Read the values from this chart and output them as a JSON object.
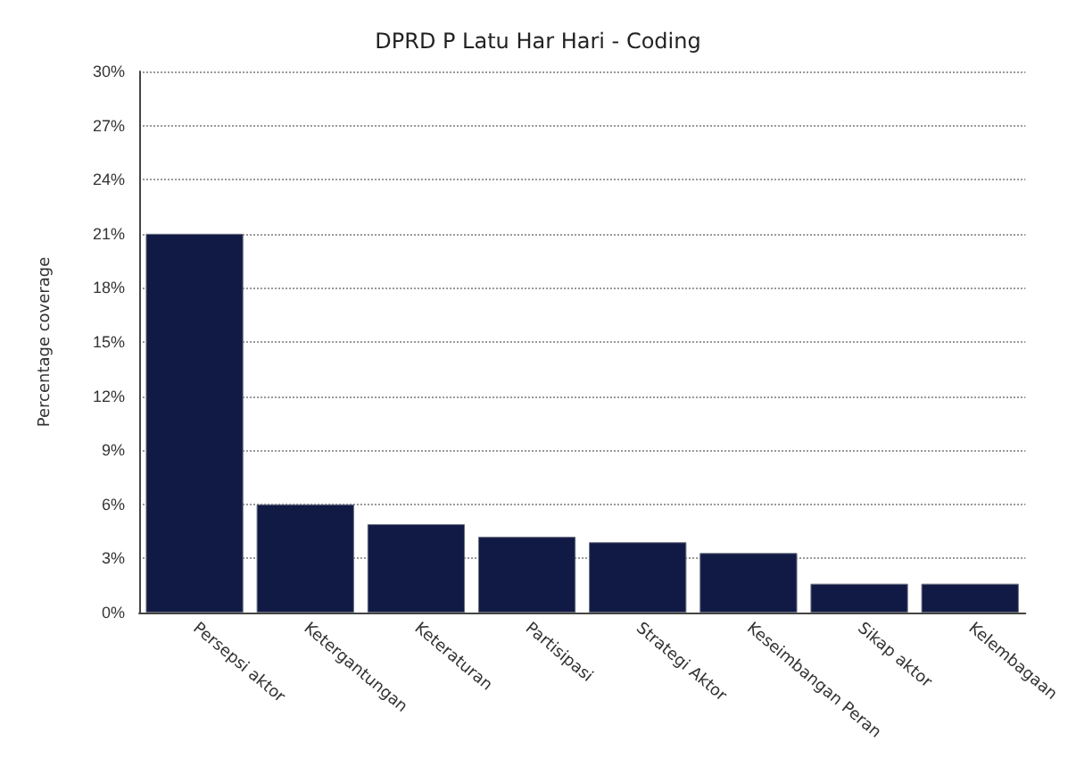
{
  "chart_data": {
    "type": "bar",
    "title": "DPRD P Latu Har Hari - Coding",
    "ylabel": "Percentage coverage",
    "categories": [
      "Persepsi aktor",
      "Ketergantungan",
      "Keteraturan",
      "Partisipasi",
      "Strategi Aktor",
      "Keseimbangan Peran",
      "Sikap aktor",
      "Kelembagaan"
    ],
    "values": [
      21,
      6,
      4.9,
      4.2,
      3.9,
      3.3,
      1.6,
      1.6
    ],
    "color": "#111a45",
    "ylim": [
      0,
      30
    ],
    "yticks": [
      {
        "value": 0,
        "label": "0%"
      },
      {
        "value": 3,
        "label": "3%"
      },
      {
        "value": 6,
        "label": "6%"
      },
      {
        "value": 9,
        "label": "9%"
      },
      {
        "value": 12,
        "label": "12%"
      },
      {
        "value": 15,
        "label": "15%"
      },
      {
        "value": 18,
        "label": "18%"
      },
      {
        "value": 21,
        "label": "21%"
      },
      {
        "value": 24,
        "label": "24%"
      },
      {
        "value": 27,
        "label": "27%"
      },
      {
        "value": 30,
        "label": "30%"
      }
    ],
    "grid": "y"
  }
}
